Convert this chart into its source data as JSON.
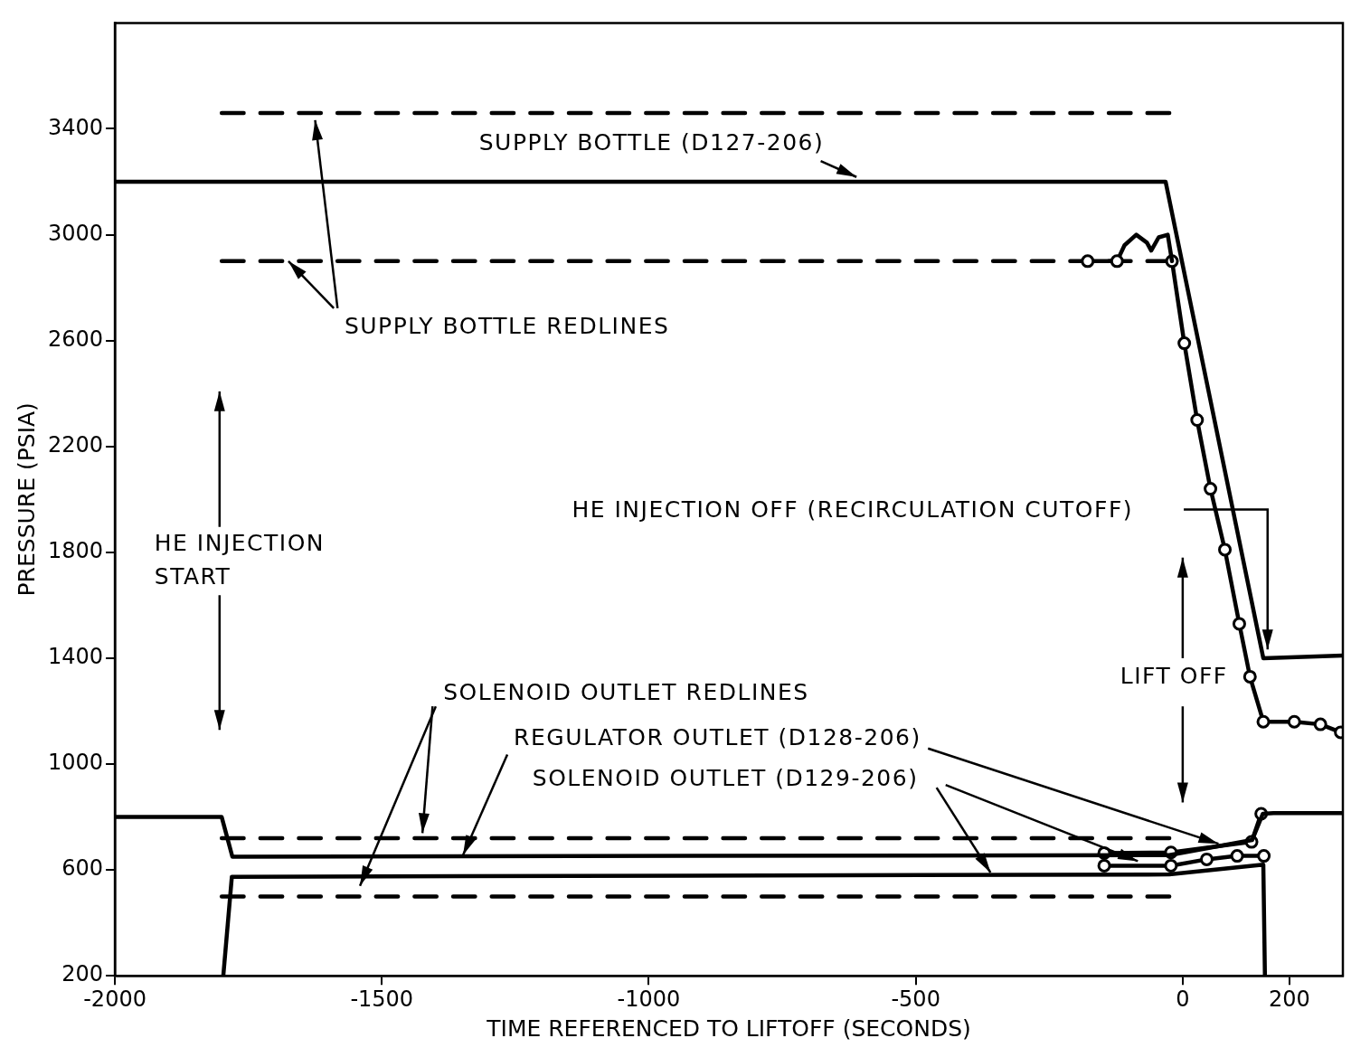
{
  "chart_data": {
    "type": "line",
    "xlabel": "TIME REFERENCED TO LIFTOFF (SECONDS)",
    "ylabel": "PRESSURE (PSIA)",
    "xlim": [
      -2000,
      300
    ],
    "ylim": [
      200,
      3800
    ],
    "xticks": [
      -2000,
      -1500,
      -1000,
      -500,
      0,
      200
    ],
    "yticks": [
      200,
      600,
      1000,
      1400,
      1800,
      2200,
      2600,
      3000,
      3400
    ],
    "grid": false,
    "legend": false,
    "annotations": [
      {
        "text": "SUPPLY BOTTLE REDLINES",
        "x": -1675,
        "y": 2900
      },
      "HE INJECTION START",
      "HE INJECTION OFF (RECIRCULATION CUTOFF)",
      "LIFT OFF",
      "SOLENOID OUTLET REDLINES"
    ],
    "series": [
      {
        "name": "SUPPLY BOTTLE (D127-206)",
        "color": "#000000",
        "x": [
          -2000,
          -32,
          151,
          300
        ],
        "values": [
          3200,
          3200,
          1400,
          1410
        ]
      },
      {
        "color": "#000000",
        "marker": "circle",
        "x": [
          -178,
          -123
        ],
        "values": [
          2900,
          2900
        ]
      },
      {
        "color": "#000000",
        "x": [
          -123,
          -109,
          -87,
          -67,
          -59,
          -45,
          -28,
          -20
        ],
        "values": [
          2900,
          2960,
          3000,
          2970,
          2940,
          2990,
          3000,
          2900
        ]
      },
      {
        "color": "#000000",
        "marker": "circle",
        "x": [
          -20,
          3,
          27,
          52,
          79,
          106,
          126,
          151,
          209,
          258,
          296
        ],
        "values": [
          2900,
          2590,
          2300,
          2040,
          1810,
          1530,
          1330,
          1160,
          1160,
          1150,
          1120
        ]
      },
      {
        "name": "REGULATOR OUTLET (D128-206)",
        "color": "#000000",
        "x": [
          -2000,
          -1800,
          -1780,
          -25,
          130,
          150,
          170,
          300
        ],
        "values": [
          800,
          800,
          650,
          656,
          713,
          812,
          815,
          815
        ]
      },
      {
        "color": "#000000",
        "marker": "circle",
        "x": [
          -147,
          -22,
          129,
          147
        ],
        "values": [
          664,
          666,
          706,
          812
        ]
      },
      {
        "color": "#000000",
        "marker": "circle",
        "x": [
          -147,
          -22,
          45,
          102,
          152
        ],
        "values": [
          616,
          616,
          640,
          653,
          653
        ]
      },
      {
        "name": "SOLENOID OUTLET (D129-206)",
        "color": "#000000",
        "x": [
          -1797,
          -1781,
          -25,
          151,
          154
        ],
        "values": [
          200,
          574,
          583,
          620,
          200
        ]
      },
      {
        "color": "#000000",
        "line_style": "dashed",
        "x": [
          -1800,
          -25
        ],
        "values": [
          3460,
          3460
        ]
      },
      {
        "color": "#000000",
        "line_style": "dashed",
        "x": [
          -1800,
          -25
        ],
        "values": [
          2900,
          2900
        ]
      },
      {
        "color": "#000000",
        "line_style": "dashed",
        "x": [
          -1800,
          -25
        ],
        "values": [
          720,
          720
        ]
      },
      {
        "color": "#000000",
        "line_style": "dashed",
        "x": [
          -1800,
          -25
        ],
        "values": [
          500,
          500
        ]
      }
    ]
  }
}
